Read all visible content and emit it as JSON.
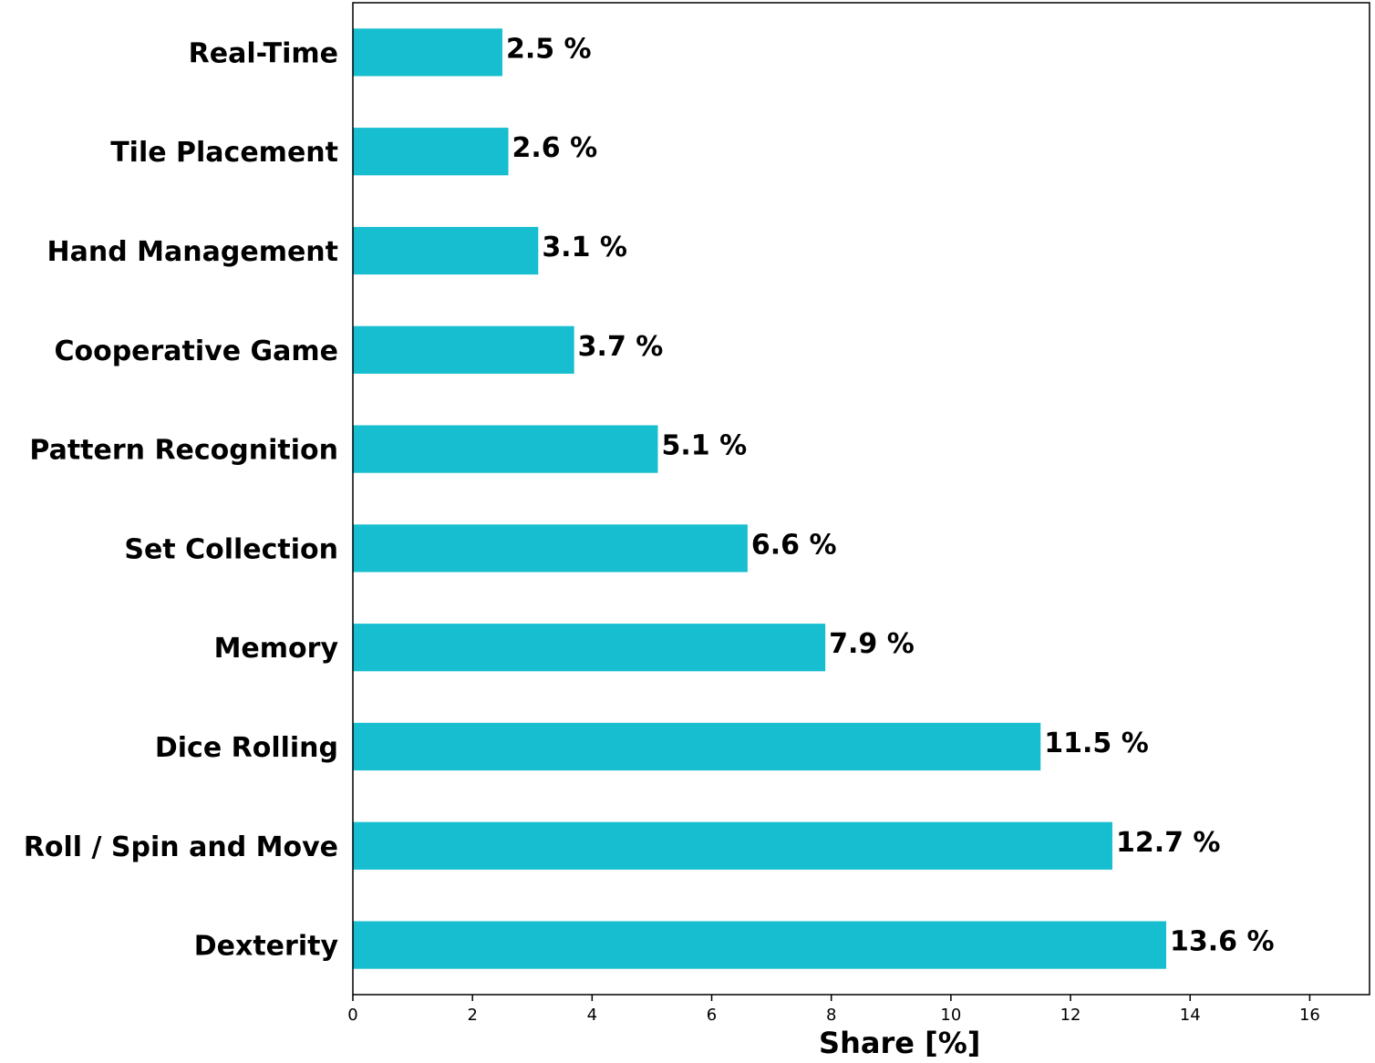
{
  "chart_data": {
    "type": "bar",
    "orientation": "horizontal",
    "categories": [
      "Real-Time",
      "Tile Placement",
      "Hand Management",
      "Cooperative Game",
      "Pattern Recognition",
      "Set Collection",
      "Memory",
      "Dice Rolling",
      "Roll / Spin and Move",
      "Dexterity"
    ],
    "values": [
      2.5,
      2.6,
      3.1,
      3.7,
      5.1,
      6.6,
      7.9,
      11.5,
      12.7,
      13.6
    ],
    "value_labels": [
      "2.5 %",
      "2.6 %",
      "3.1 %",
      "3.7 %",
      "5.1 %",
      "6.6 %",
      "7.9 %",
      "11.5 %",
      "12.7 %",
      "13.6 %"
    ],
    "title": "",
    "xlabel": "Share [%]",
    "ylabel": "",
    "xlim": [
      0,
      17
    ],
    "xticks": [
      0,
      2,
      4,
      6,
      8,
      10,
      12,
      14,
      16
    ],
    "xtick_labels": [
      "0",
      "2",
      "4",
      "6",
      "8",
      "10",
      "12",
      "14",
      "16"
    ],
    "grid": false,
    "bar_color": "#17becf"
  }
}
